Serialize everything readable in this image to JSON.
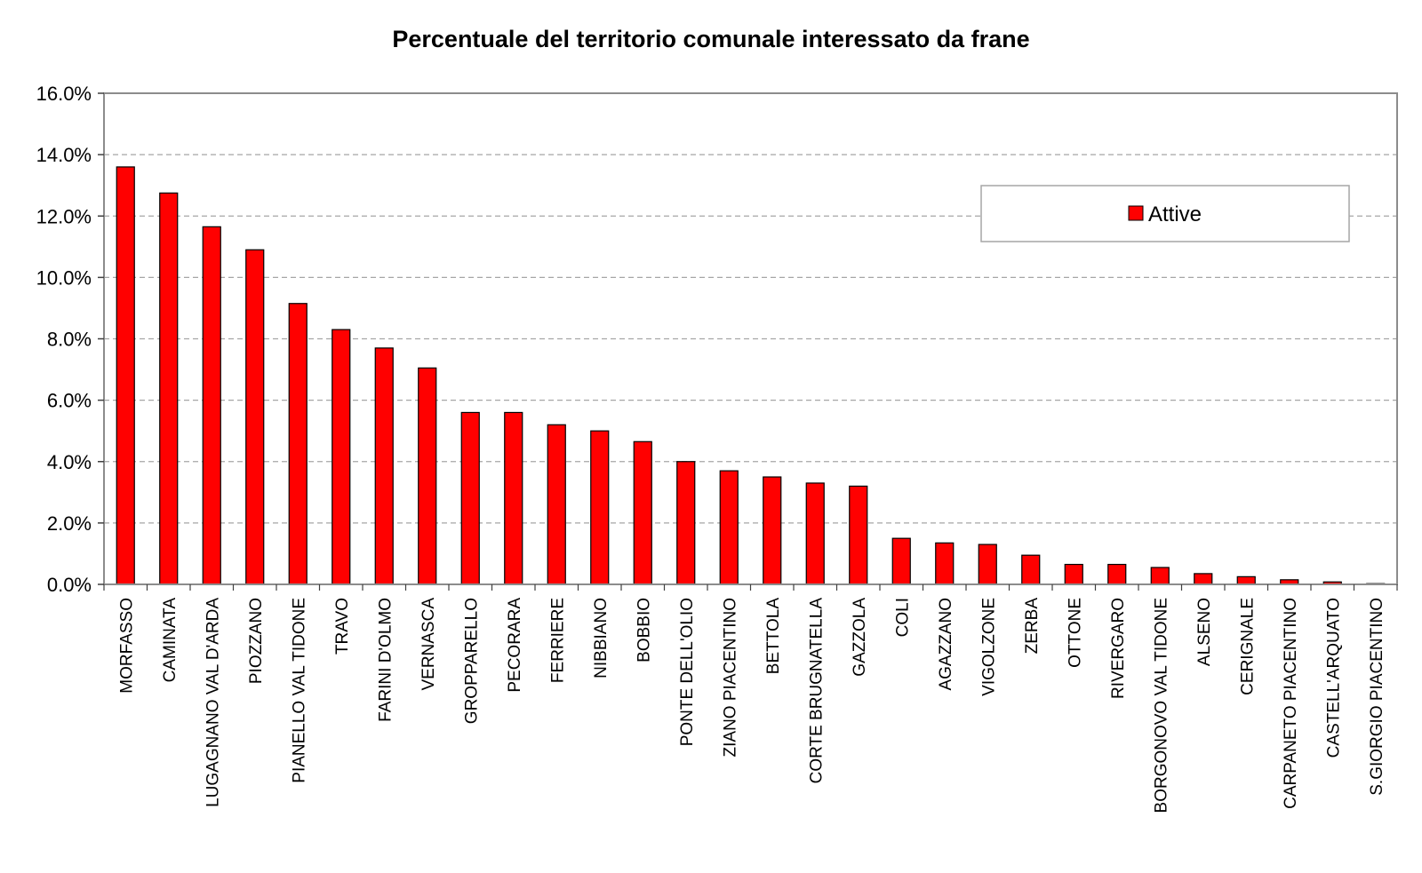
{
  "chart_data": {
    "type": "bar",
    "title": "Percentuale del territorio comunale interessato da frane",
    "xlabel": "",
    "ylabel": "",
    "ylim": [
      0,
      16
    ],
    "y_ticks": [
      0,
      2,
      4,
      6,
      8,
      10,
      12,
      14,
      16
    ],
    "y_tick_labels": [
      "0.0%",
      "2.0%",
      "4.0%",
      "6.0%",
      "8.0%",
      "10.0%",
      "12.0%",
      "14.0%",
      "16.0%"
    ],
    "grid": "horizontal-dashed",
    "legend": {
      "position": "top-right",
      "entries": [
        "Attive"
      ]
    },
    "categories": [
      "MORFASSO",
      "CAMINATA",
      "LUGAGNANO VAL D'ARDA",
      "PIOZZANO",
      "PIANELLO VAL TIDONE",
      "TRAVO",
      "FARINI D'OLMO",
      "VERNASCA",
      "GROPPARELLO",
      "PECORARA",
      "FERRIERE",
      "NIBBIANO",
      "BOBBIO",
      "PONTE DELL'OLIO",
      "ZIANO PIACENTINO",
      "BETTOLA",
      "CORTE BRUGNATELLA",
      "GAZZOLA",
      "COLI",
      "AGAZZANO",
      "VIGOLZONE",
      "ZERBA",
      "OTTONE",
      "RIVERGARO",
      "BORGONOVO VAL TIDONE",
      "ALSENO",
      "CERIGNALE",
      "CARPANETO PIACENTINO",
      "CASTELL'ARQUATO",
      "S.GIORGIO PIACENTINO"
    ],
    "series": [
      {
        "name": "Attive",
        "color": "#ff0000",
        "values": [
          13.6,
          12.75,
          11.65,
          10.9,
          9.15,
          8.3,
          7.7,
          7.05,
          5.6,
          5.6,
          5.2,
          5.0,
          4.65,
          4.0,
          3.7,
          3.5,
          3.3,
          3.2,
          1.5,
          1.35,
          1.3,
          0.95,
          0.65,
          0.65,
          0.55,
          0.35,
          0.25,
          0.15,
          0.08,
          0.02
        ]
      }
    ]
  }
}
